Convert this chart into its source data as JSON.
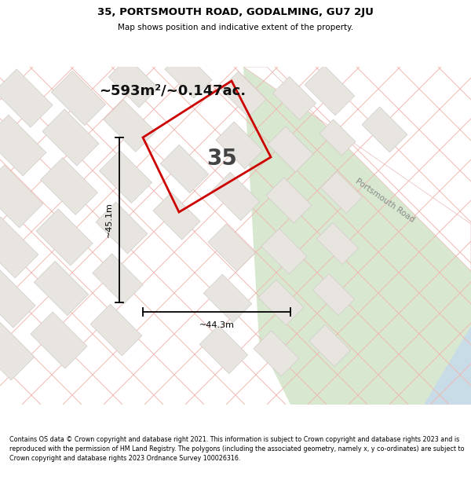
{
  "title": "35, PORTSMOUTH ROAD, GODALMING, GU7 2JU",
  "subtitle": "Map shows position and indicative extent of the property.",
  "area_text": "~593m²/~0.147ac.",
  "property_number": "35",
  "dim_width": "~44.3m",
  "dim_height": "~45.1m",
  "footer": "Contains OS data © Crown copyright and database right 2021. This information is subject to Crown copyright and database rights 2023 and is reproduced with the permission of HM Land Registry. The polygons (including the associated geometry, namely x, y co-ordinates) are subject to Crown copyright and database rights 2023 Ordnance Survey 100026316.",
  "bg_color": "#f5f3f0",
  "road_color": "#ffffff",
  "green_area_color": "#d8e8d0",
  "blue_color": "#c8dce8",
  "property_fill": "none",
  "property_outline": "#cc0000",
  "grid_line_color": "#f0b8b0",
  "building_fill": "#e8e5e0",
  "building_stroke": "#d0ccc8",
  "road_strip_color": "#ffffff",
  "road_border_color": "#e8b8b8"
}
